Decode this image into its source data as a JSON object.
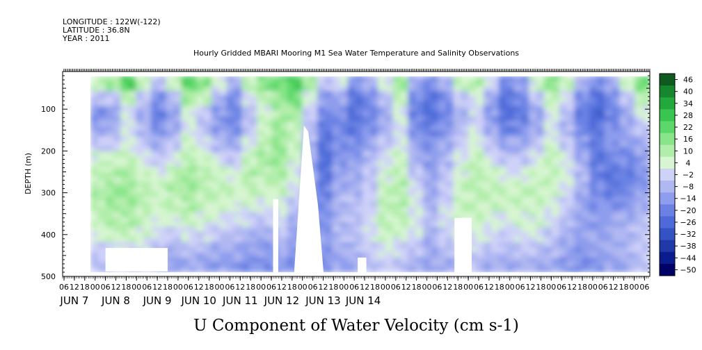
{
  "header": {
    "lines": [
      "LONGITUDE : 122W(-122)",
      "LATITUDE : 36.8N",
      "YEAR : 2011"
    ],
    "title": "Hourly Gridded MBARI Mooring M1 Sea Water Temperature and Salinity Observations"
  },
  "chart_data": {
    "type": "heatmap",
    "title": "Hourly Gridded MBARI Mooring M1 Sea Water Temperature and Salinity Observations",
    "xlabel": "",
    "ylabel": "DEPTH (m)",
    "bottom_label": "U Component of Water Velocity (cm s-1)",
    "y_reversed": true,
    "ylim": [
      10,
      500
    ],
    "y_ticks": [
      100,
      200,
      300,
      400,
      500
    ],
    "x_hour_ticks": [
      "06",
      "12",
      "18",
      "00",
      "06",
      "12",
      "18",
      "00",
      "06",
      "12",
      "18",
      "00",
      "06",
      "12",
      "18",
      "00",
      "06",
      "12",
      "18",
      "00",
      "06",
      "12",
      "18",
      "00",
      "06",
      "12",
      "18",
      "00",
      "06",
      "12",
      "18",
      "00",
      "06",
      "12",
      "18",
      "00",
      "06",
      "12",
      "18",
      "00",
      "06",
      "12",
      "18",
      "00",
      "06",
      "12",
      "18",
      "00",
      "06",
      "12",
      "18",
      "00",
      "06",
      "12",
      "18",
      "00",
      "06"
    ],
    "x_day_labels": [
      "JUN 7",
      "JUN 8",
      "JUN 9",
      "JUN 10",
      "JUN 11",
      "JUN 12",
      "JUN 13",
      "JUN 14"
    ],
    "colorbar_levels": [
      -50,
      -44,
      -38,
      -32,
      -26,
      -20,
      -14,
      -8,
      -2,
      4,
      10,
      16,
      22,
      28,
      34,
      40,
      46
    ],
    "colorbar_labels": [
      "46",
      "40",
      "34",
      "28",
      "22",
      "16",
      "10",
      "4",
      "−2",
      "−8",
      "−14",
      "−20",
      "−26",
      "−32",
      "−38",
      "−44",
      "−50"
    ],
    "colorbar_colors": [
      "#000066",
      "#0b1d8e",
      "#1f3aa8",
      "#3353c4",
      "#4d6ad8",
      "#6b82e4",
      "#8e9ded",
      "#b0b8f2",
      "#cfd2f8",
      "#d6f5d0",
      "#b2eeab",
      "#88e58a",
      "#5cd86a",
      "#39c650",
      "#22a83d",
      "#16862f",
      "#0f5a1f"
    ],
    "field_grid": [
      [
        10,
        14,
        26,
        10,
        -4,
        8,
        24,
        18,
        6,
        -6,
        10,
        18,
        22,
        28,
        14,
        -4,
        2,
        -12,
        -6,
        4,
        14,
        -8,
        -14,
        -6,
        8,
        12,
        2,
        -16,
        -12,
        6,
        18,
        10,
        -6,
        -16,
        -8,
        8,
        22
      ],
      [
        -4,
        -2,
        10,
        -2,
        -14,
        -4,
        14,
        8,
        -6,
        -14,
        2,
        10,
        16,
        22,
        6,
        -12,
        -10,
        -20,
        -14,
        -4,
        8,
        -16,
        -20,
        -14,
        -2,
        4,
        -8,
        -20,
        -16,
        -4,
        10,
        2,
        -14,
        -22,
        -16,
        -2,
        12
      ],
      [
        -14,
        -10,
        2,
        -8,
        -18,
        -10,
        6,
        -2,
        -12,
        -16,
        -4,
        6,
        12,
        14,
        0,
        -16,
        -14,
        -22,
        -16,
        -8,
        4,
        -18,
        -22,
        -16,
        -6,
        0,
        -12,
        -22,
        -18,
        -10,
        4,
        -4,
        -18,
        -24,
        -18,
        -8,
        6
      ],
      [
        -10,
        -6,
        4,
        -6,
        -14,
        -8,
        4,
        -4,
        -12,
        -14,
        -2,
        8,
        14,
        10,
        -4,
        -18,
        -16,
        -20,
        -14,
        -6,
        2,
        -16,
        -18,
        -12,
        -4,
        2,
        -10,
        -18,
        -14,
        -8,
        2,
        -6,
        -16,
        -20,
        -14,
        -10,
        -2
      ],
      [
        -2,
        0,
        6,
        -2,
        -8,
        -2,
        8,
        2,
        -6,
        -8,
        4,
        12,
        16,
        8,
        -6,
        -20,
        -14,
        -16,
        -10,
        -2,
        4,
        -10,
        -14,
        -8,
        0,
        6,
        -4,
        -10,
        -8,
        -2,
        6,
        -2,
        -12,
        -18,
        -12,
        -12,
        -8
      ],
      [
        6,
        8,
        10,
        4,
        -2,
        4,
        12,
        8,
        2,
        -2,
        10,
        14,
        16,
        6,
        -8,
        -22,
        -12,
        -12,
        -6,
        2,
        8,
        -6,
        -12,
        -6,
        4,
        10,
        2,
        -4,
        -2,
        4,
        10,
        2,
        -8,
        -20,
        -16,
        -16,
        -12
      ],
      [
        10,
        12,
        14,
        8,
        4,
        10,
        14,
        12,
        8,
        4,
        12,
        12,
        14,
        4,
        -10,
        -20,
        -10,
        -8,
        -4,
        6,
        10,
        -2,
        -10,
        -4,
        6,
        12,
        8,
        2,
        4,
        8,
        10,
        4,
        -6,
        -18,
        -20,
        -18,
        -14
      ],
      [
        12,
        14,
        16,
        12,
        8,
        12,
        14,
        12,
        10,
        8,
        10,
        8,
        10,
        2,
        -12,
        -18,
        -8,
        -6,
        -2,
        8,
        12,
        2,
        -8,
        -2,
        8,
        12,
        10,
        8,
        8,
        10,
        8,
        2,
        -8,
        -16,
        -18,
        -16,
        -12
      ],
      [
        12,
        14,
        14,
        12,
        8,
        10,
        12,
        10,
        8,
        6,
        6,
        4,
        6,
        -2,
        -14,
        -16,
        -6,
        -4,
        0,
        10,
        12,
        4,
        -6,
        0,
        8,
        10,
        10,
        8,
        8,
        8,
        6,
        0,
        -10,
        -14,
        -14,
        -12,
        -8
      ],
      [
        10,
        12,
        12,
        10,
        6,
        6,
        8,
        6,
        4,
        2,
        0,
        -2,
        2,
        -6,
        -14,
        -14,
        -6,
        -4,
        2,
        10,
        10,
        4,
        -4,
        2,
        6,
        8,
        6,
        4,
        6,
        6,
        2,
        -4,
        -10,
        -12,
        -10,
        -8,
        -4
      ],
      [
        6,
        8,
        8,
        6,
        2,
        0,
        2,
        0,
        -2,
        -4,
        -6,
        -8,
        -4,
        -10,
        -14,
        -12,
        -6,
        -4,
        2,
        8,
        6,
        2,
        -6,
        0,
        4,
        4,
        2,
        0,
        2,
        2,
        -2,
        -6,
        -10,
        -10,
        -8,
        -6,
        -2
      ],
      [
        0,
        2,
        2,
        2,
        -4,
        -6,
        -4,
        -6,
        -8,
        -8,
        -10,
        -12,
        -8,
        -12,
        -14,
        -12,
        -8,
        -6,
        0,
        4,
        0,
        -4,
        -8,
        -4,
        0,
        0,
        -4,
        -4,
        -2,
        -4,
        -6,
        -8,
        -12,
        -10,
        -8,
        -6,
        -2
      ],
      [
        -4,
        -2,
        -2,
        -2,
        -8,
        -10,
        -8,
        -10,
        -12,
        -12,
        -14,
        -14,
        -12,
        -14,
        -16,
        -14,
        -10,
        -8,
        -4,
        0,
        -4,
        -8,
        -10,
        -8,
        -4,
        -4,
        -8,
        -8,
        -6,
        -8,
        -10,
        -12,
        -14,
        -12,
        -10,
        -8,
        -4
      ]
    ],
    "white_gaps": [
      {
        "label": "missing-jun7-late",
        "from_hour": 24,
        "to_hour": 60,
        "depth_from": 432,
        "depth_to": 488
      },
      {
        "label": "missing-jun10-12h",
        "from_hour": 121,
        "to_hour": 124,
        "depth_from": 315,
        "depth_to": 490
      },
      {
        "label": "missing-jun11-spike",
        "from_hour": 134,
        "to_hour": 147,
        "depth_from": 140,
        "depth_to": 490
      },
      {
        "label": "missing-jun12-a",
        "from_hour": 170,
        "to_hour": 175,
        "depth_from": 455,
        "depth_to": 490
      },
      {
        "label": "missing-jun13",
        "from_hour": 226,
        "to_hour": 236,
        "depth_from": 360,
        "depth_to": 490
      }
    ]
  }
}
